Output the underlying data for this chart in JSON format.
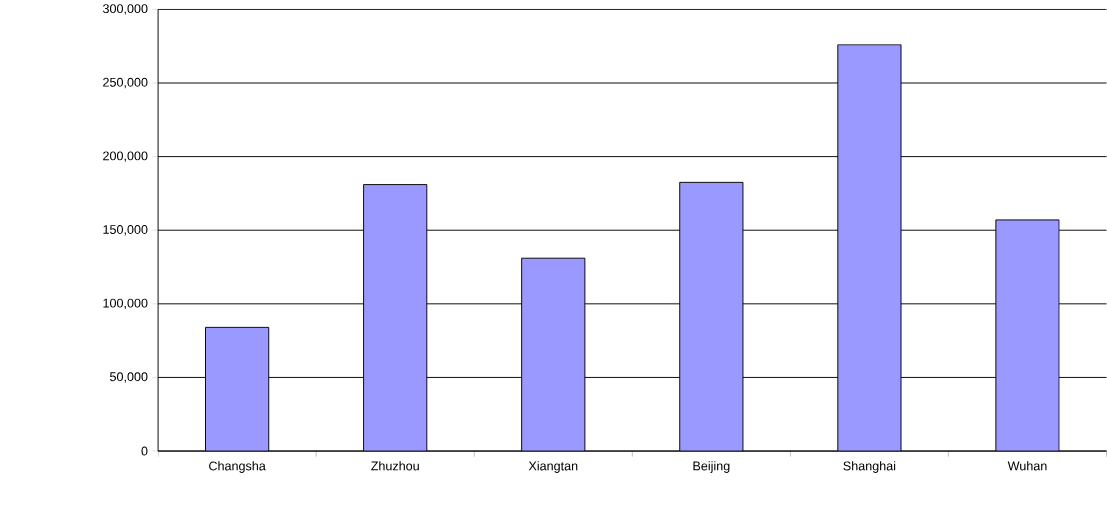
{
  "chart_data": {
    "type": "bar",
    "categories": [
      "Changsha",
      "Zhuzhou",
      "Xiangtan",
      "Beijing",
      "Shanghai",
      "Wuhan"
    ],
    "values": [
      84000,
      181000,
      131000,
      182500,
      276000,
      157000
    ],
    "color": "#9999ff",
    "ylim": [
      0,
      300000
    ],
    "yticks": [
      {
        "value": 0,
        "label": "0"
      },
      {
        "value": 50000,
        "label": "50,000"
      },
      {
        "value": 100000,
        "label": "100,000"
      },
      {
        "value": 150000,
        "label": "150,000"
      },
      {
        "value": 200000,
        "label": "200,000"
      },
      {
        "value": 250000,
        "label": "250,000"
      },
      {
        "value": 300000,
        "label": "300,000"
      }
    ],
    "grid": "y"
  }
}
